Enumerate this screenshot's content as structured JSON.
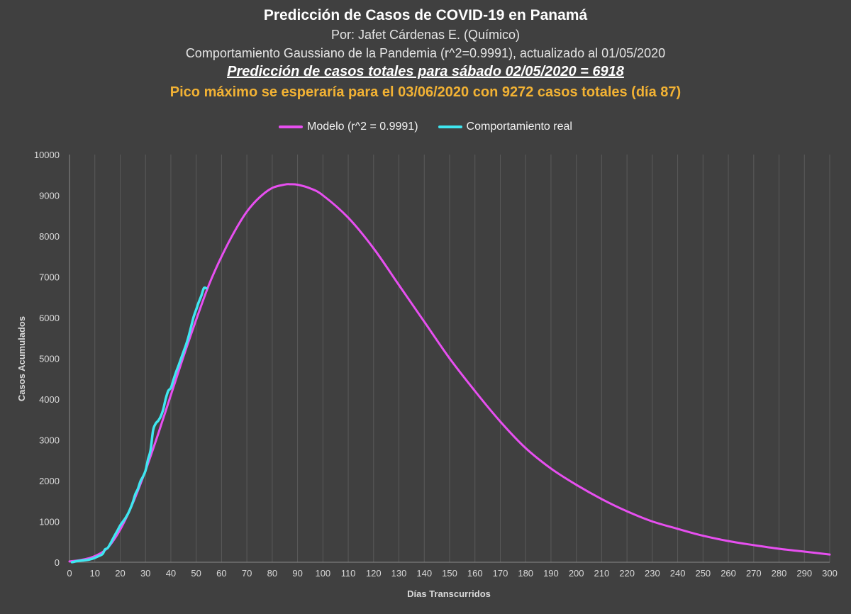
{
  "header": {
    "title": "Predicción de Casos de COVID-19 en Panamá",
    "author": "Por: Jafet Cárdenas E. (Químico)",
    "subtitle": "Comportamiento Gaussiano de la Pandemia (r^2=0.9991), actualizado al 01/05/2020",
    "prediction": "Predicción de casos totales para sábado 02/05/2020 = 6918",
    "peak": "Pico máximo se esperaría para el 03/06/2020 con 9272 casos totales (día 87)"
  },
  "colors": {
    "background": "#404040",
    "grid": "#5a5a5a",
    "model": "#e74ff0",
    "real": "#3fe6f0",
    "peak_text": "#f2b234"
  },
  "chart_data": {
    "type": "line",
    "xlabel": "Días Transcurridos",
    "ylabel": "Casos Acumulados",
    "xlim": [
      0,
      300
    ],
    "ylim": [
      0,
      10000
    ],
    "x_ticks": [
      0,
      10,
      20,
      30,
      40,
      50,
      60,
      70,
      80,
      90,
      100,
      110,
      120,
      130,
      140,
      150,
      160,
      170,
      180,
      190,
      200,
      210,
      220,
      230,
      240,
      250,
      260,
      270,
      280,
      290,
      300
    ],
    "y_ticks": [
      0,
      1000,
      2000,
      3000,
      4000,
      5000,
      6000,
      7000,
      8000,
      9000,
      10000
    ],
    "grid": "vertical",
    "legend_position": "top-center",
    "series": [
      {
        "name": "Modelo (r^2 = 0.9991)",
        "color": "#e74ff0",
        "x": [
          0,
          5,
          10,
          15,
          20,
          25,
          30,
          35,
          40,
          45,
          50,
          55,
          60,
          65,
          70,
          75,
          80,
          85,
          87,
          90,
          95,
          100,
          110,
          120,
          130,
          140,
          150,
          160,
          170,
          180,
          190,
          200,
          210,
          220,
          230,
          240,
          250,
          260,
          270,
          280,
          290,
          300
        ],
        "y": [
          20,
          60,
          150,
          350,
          800,
          1450,
          2250,
          3150,
          4100,
          5050,
          5950,
          6800,
          7500,
          8100,
          8600,
          8950,
          9180,
          9265,
          9272,
          9260,
          9170,
          9000,
          8450,
          7700,
          6800,
          5900,
          5000,
          4200,
          3450,
          2800,
          2300,
          1900,
          1550,
          1250,
          1000,
          820,
          650,
          520,
          420,
          330,
          260,
          190
        ]
      },
      {
        "name": "Comportamiento real",
        "color": "#3fe6f0",
        "x": [
          1,
          3,
          5,
          7,
          9,
          11,
          13,
          14,
          15,
          16,
          17,
          18,
          19,
          20,
          21,
          22,
          23,
          24,
          25,
          26,
          27,
          28,
          29,
          30,
          31,
          32,
          33,
          34,
          35,
          36,
          37,
          38,
          39,
          40,
          41,
          42,
          43,
          44,
          45,
          46,
          47,
          48,
          49,
          50,
          51,
          52,
          53,
          54
        ],
        "y": [
          1,
          27,
          43,
          55,
          86,
          137,
          200,
          313,
          345,
          443,
          558,
          674,
          786,
          901,
          989,
          1075,
          1181,
          1317,
          1475,
          1673,
          1801,
          1988,
          2100,
          2249,
          2528,
          2752,
          3234,
          3400,
          3472,
          3574,
          3751,
          4016,
          4210,
          4273,
          4467,
          4658,
          4821,
          4992,
          5166,
          5338,
          5538,
          5779,
          6021,
          6200,
          6378,
          6532,
          6720,
          6720
        ]
      }
    ]
  }
}
